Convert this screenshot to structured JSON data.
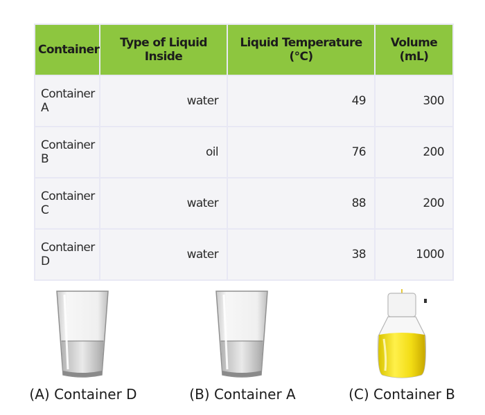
{
  "table": {
    "headers": [
      "Container",
      "Type of Liquid Inside",
      "Liquid Temperature (°C)",
      "Volume (mL)"
    ],
    "rows": [
      [
        "Container A",
        "water",
        "49",
        "300"
      ],
      [
        "Container B",
        "oil",
        "76",
        "200"
      ],
      [
        "Container C",
        "water",
        "88",
        "200"
      ],
      [
        "Container D",
        "water",
        "38",
        "1000"
      ]
    ]
  },
  "header_color": "#8dc63f",
  "options": [
    {
      "label": "(A) Container D",
      "icon": "water-glass-icon"
    },
    {
      "label": "(B) Container A",
      "icon": "water-glass-icon"
    },
    {
      "label": "(C) Container B",
      "icon": "oil-jar-icon"
    }
  ]
}
